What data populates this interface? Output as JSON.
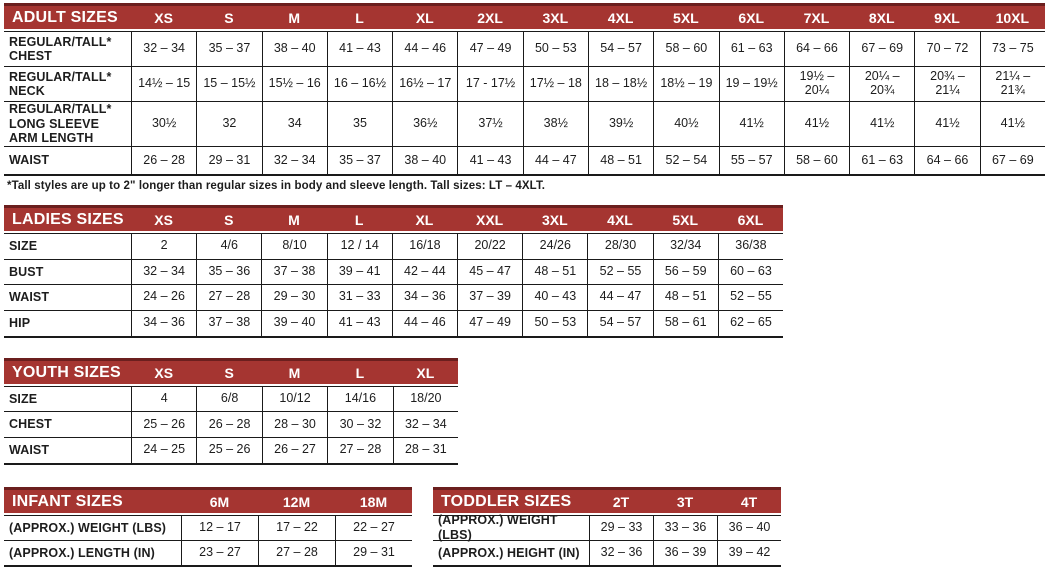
{
  "page": {
    "background": "#ffffff",
    "header_red": "#A53531",
    "header_red_dark": "#6B1F1E",
    "border_black": "#1a1a1a",
    "text_color": "#1d1d1d",
    "header_text_color": "#ffffff"
  },
  "tables": [
    {
      "key": "adult-sizes",
      "title": "ADULT SIZES",
      "columns": [
        "XS",
        "S",
        "M",
        "L",
        "XL",
        "2XL",
        "3XL",
        "4XL",
        "5XL",
        "6XL",
        "7XL",
        "8XL",
        "9XL",
        "10XL"
      ],
      "rows": [
        {
          "label": "REGULAR/TALL*\nCHEST",
          "values": [
            "32 – 34",
            "35 – 37",
            "38 – 40",
            "41 – 43",
            "44 – 46",
            "47 – 49",
            "50 – 53",
            "54 – 57",
            "58 – 60",
            "61 – 63",
            "64 – 66",
            "67 – 69",
            "70 – 72",
            "73 – 75"
          ]
        },
        {
          "label": "REGULAR/TALL*\nNECK",
          "values": [
            "14½ – 15",
            "15 – 15½",
            "15½ – 16",
            "16 – 16½",
            "16½ – 17",
            "17 - 17½",
            "17½ – 18",
            "18 – 18½",
            "18½ – 19",
            "19 – 19½",
            "19½ – 20¼",
            "20¼ – 20¾",
            "20¾ – 21¼",
            "21¼ – 21¾"
          ]
        },
        {
          "label": "REGULAR/TALL*\nLONG SLEEVE\nARM LENGTH",
          "values": [
            "30½",
            "32",
            "34",
            "35",
            "36½",
            "37½",
            "38½",
            "39½",
            "40½",
            "41½",
            "41½",
            "41½",
            "41½",
            "41½"
          ]
        },
        {
          "label": "WAIST",
          "values": [
            "26 – 28",
            "29 – 31",
            "32 – 34",
            "35 – 37",
            "38 – 40",
            "41 – 43",
            "44 – 47",
            "48 – 51",
            "52 – 54",
            "55 – 57",
            "58 – 60",
            "61 – 63",
            "64 – 66",
            "67 – 69"
          ]
        }
      ],
      "footnote": "*Tall styles are up to 2\" longer than regular sizes in body and sleeve length. Tall sizes: LT – 4XLT."
    },
    {
      "key": "ladies-sizes",
      "title": "LADIES SIZES",
      "columns": [
        "XS",
        "S",
        "M",
        "L",
        "XL",
        "XXL",
        "3XL",
        "4XL",
        "5XL",
        "6XL"
      ],
      "rows": [
        {
          "label": "SIZE",
          "values": [
            "2",
            "4/6",
            "8/10",
            "12 / 14",
            "16/18",
            "20/22",
            "24/26",
            "28/30",
            "32/34",
            "36/38"
          ]
        },
        {
          "label": "BUST",
          "values": [
            "32 – 34",
            "35 – 36",
            "37 – 38",
            "39 – 41",
            "42 – 44",
            "45 – 47",
            "48 – 51",
            "52 – 55",
            "56 – 59",
            "60 – 63"
          ]
        },
        {
          "label": "WAIST",
          "values": [
            "24 – 26",
            "27 – 28",
            "29 – 30",
            "31 – 33",
            "34 – 36",
            "37 – 39",
            "40 – 43",
            "44 – 47",
            "48 – 51",
            "52 – 55"
          ]
        },
        {
          "label": "HIP",
          "values": [
            "34 – 36",
            "37 – 38",
            "39 – 40",
            "41 – 43",
            "44 – 46",
            "47 – 49",
            "50 – 53",
            "54 – 57",
            "58 – 61",
            "62 – 65"
          ]
        }
      ]
    },
    {
      "key": "youth-sizes",
      "title": "YOUTH SIZES",
      "columns": [
        "XS",
        "S",
        "M",
        "L",
        "XL"
      ],
      "rows": [
        {
          "label": "SIZE",
          "values": [
            "4",
            "6/8",
            "10/12",
            "14/16",
            "18/20"
          ]
        },
        {
          "label": "CHEST",
          "values": [
            "25 – 26",
            "26 – 28",
            "28 – 30",
            "30 – 32",
            "32 – 34"
          ]
        },
        {
          "label": "WAIST",
          "values": [
            "24 – 25",
            "25 – 26",
            "26 – 27",
            "27 – 28",
            "28 – 31"
          ]
        }
      ]
    },
    {
      "key": "infant-sizes",
      "title": "INFANT SIZES",
      "columns": [
        "6M",
        "12M",
        "18M"
      ],
      "rows": [
        {
          "label": "(APPROX.) WEIGHT (LBS)",
          "values": [
            "12 – 17",
            "17 – 22",
            "22 – 27"
          ]
        },
        {
          "label": "(APPROX.) LENGTH (IN)",
          "values": [
            "23 – 27",
            "27 – 28",
            "29 – 31"
          ]
        }
      ]
    },
    {
      "key": "toddler-sizes",
      "title": "TODDLER SIZES",
      "columns": [
        "2T",
        "3T",
        "4T"
      ],
      "rows": [
        {
          "label": "(APPROX.) WEIGHT (LBS)",
          "values": [
            "29 – 33",
            "33 – 36",
            "36 – 40"
          ]
        },
        {
          "label": "(APPROX.) HEIGHT (IN)",
          "values": [
            "32 – 36",
            "36 – 39",
            "39 – 42"
          ]
        }
      ]
    }
  ]
}
